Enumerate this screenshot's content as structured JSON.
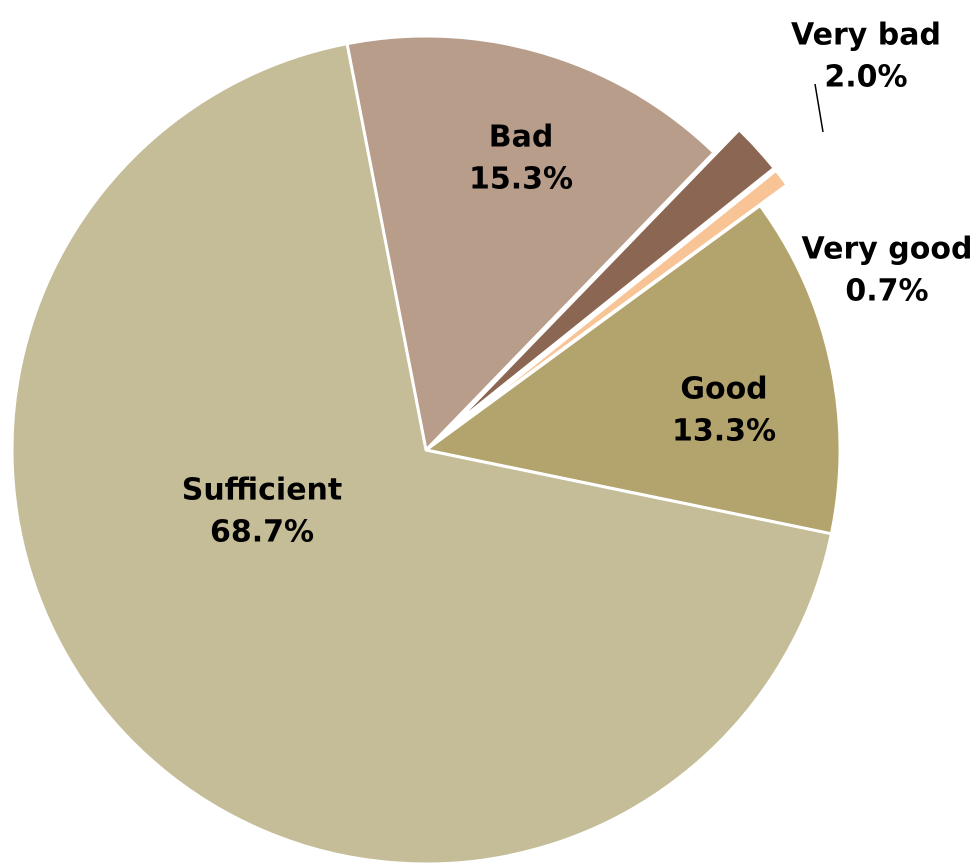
{
  "chart_data": {
    "type": "pie",
    "title": "",
    "start_angle_deg": 349,
    "direction": "clockwise",
    "slices": [
      {
        "label": "Bad",
        "value": 15.3,
        "value_label": "15.3%",
        "color": "#b89d8b",
        "exploded": false,
        "label_position": "inside"
      },
      {
        "label": "Very bad",
        "value": 2.0,
        "value_label": "2.0%",
        "color": "#8b6652",
        "exploded": true,
        "label_position": "outside",
        "leader_line": true
      },
      {
        "label": "Very good",
        "value": 0.7,
        "value_label": "0.7%",
        "color": "#f8c495",
        "exploded": true,
        "label_position": "outside",
        "leader_line": false
      },
      {
        "label": "Good",
        "value": 13.3,
        "value_label": "13.3%",
        "color": "#b3a46d",
        "exploded": false,
        "label_position": "inside"
      },
      {
        "label": "Sufficient",
        "value": 68.7,
        "value_label": "68.7%",
        "color": "#c4bd97",
        "exploded": false,
        "label_position": "inside"
      }
    ]
  }
}
